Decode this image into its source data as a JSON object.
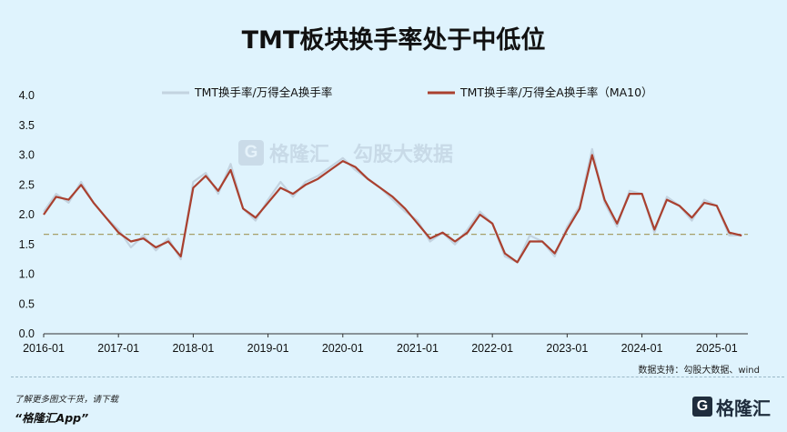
{
  "title": "TMT板块换手率处于中低位",
  "source": "数据支持：勾股大数据、wind",
  "promo_line1": "了解更多图文干货，请下载",
  "promo_line2": "“格隆汇App”",
  "logo_text": "格隆汇",
  "logo_mark": "G",
  "watermark": {
    "mark": "G",
    "brand": "格隆汇",
    "brand2": "勾股大数据"
  },
  "colors": {
    "background": "#dff3fd",
    "raw_series": "#c3d3e0",
    "ma_series": "#a9402f",
    "reference_line": "#a6a06a"
  },
  "chart_data": {
    "type": "line",
    "title": "TMT板块换手率处于中低位",
    "xlabel": "",
    "ylabel": "",
    "ylim": [
      0.0,
      4.0
    ],
    "yticks": [
      "0.0",
      "0.5",
      "1.0",
      "1.5",
      "2.0",
      "2.5",
      "3.0",
      "3.5",
      "4.0"
    ],
    "xticks": [
      "2016-01",
      "2017-01",
      "2018-01",
      "2019-01",
      "2020-01",
      "2021-01",
      "2022-01",
      "2023-01",
      "2024-01",
      "2025-01"
    ],
    "xlim": [
      "2016-01",
      "2025-06"
    ],
    "reference_line": {
      "value": 1.67,
      "style": "dashed"
    },
    "legend_position": "top",
    "grid": false,
    "series": [
      {
        "name": "TMT换手率/万得全A换手率",
        "x": [
          "2016-01",
          "2016-03",
          "2016-05",
          "2016-07",
          "2016-09",
          "2016-11",
          "2017-01",
          "2017-03",
          "2017-05",
          "2017-07",
          "2017-09",
          "2017-11",
          "2018-01",
          "2018-03",
          "2018-05",
          "2018-07",
          "2018-09",
          "2018-11",
          "2019-01",
          "2019-03",
          "2019-05",
          "2019-07",
          "2019-09",
          "2019-11",
          "2020-01",
          "2020-03",
          "2020-05",
          "2020-07",
          "2020-09",
          "2020-11",
          "2021-01",
          "2021-03",
          "2021-05",
          "2021-07",
          "2021-09",
          "2021-11",
          "2022-01",
          "2022-03",
          "2022-05",
          "2022-07",
          "2022-09",
          "2022-11",
          "2023-01",
          "2023-03",
          "2023-05",
          "2023-07",
          "2023-09",
          "2023-11",
          "2024-01",
          "2024-03",
          "2024-05",
          "2024-07",
          "2024-09",
          "2024-11",
          "2025-01",
          "2025-03",
          "2025-05"
        ],
        "values": [
          2.05,
          2.35,
          2.2,
          2.55,
          2.2,
          1.95,
          1.75,
          1.45,
          1.65,
          1.4,
          1.6,
          1.25,
          2.55,
          2.7,
          2.35,
          2.85,
          2.1,
          1.9,
          2.25,
          2.55,
          2.3,
          2.55,
          2.65,
          2.8,
          2.95,
          2.75,
          2.6,
          2.45,
          2.25,
          2.05,
          1.9,
          1.55,
          1.7,
          1.5,
          1.75,
          2.05,
          1.85,
          1.3,
          1.2,
          1.65,
          1.55,
          1.3,
          1.8,
          2.15,
          3.1,
          2.2,
          1.8,
          2.4,
          2.35,
          1.7,
          2.3,
          2.15,
          1.9,
          2.25,
          2.15,
          1.65,
          1.65
        ]
      },
      {
        "name": "TMT换手率/万得全A换手率（MA10）",
        "x": [
          "2016-01",
          "2016-03",
          "2016-05",
          "2016-07",
          "2016-09",
          "2016-11",
          "2017-01",
          "2017-03",
          "2017-05",
          "2017-07",
          "2017-09",
          "2017-11",
          "2018-01",
          "2018-03",
          "2018-05",
          "2018-07",
          "2018-09",
          "2018-11",
          "2019-01",
          "2019-03",
          "2019-05",
          "2019-07",
          "2019-09",
          "2019-11",
          "2020-01",
          "2020-03",
          "2020-05",
          "2020-07",
          "2020-09",
          "2020-11",
          "2021-01",
          "2021-03",
          "2021-05",
          "2021-07",
          "2021-09",
          "2021-11",
          "2022-01",
          "2022-03",
          "2022-05",
          "2022-07",
          "2022-09",
          "2022-11",
          "2023-01",
          "2023-03",
          "2023-05",
          "2023-07",
          "2023-09",
          "2023-11",
          "2024-01",
          "2024-03",
          "2024-05",
          "2024-07",
          "2024-09",
          "2024-11",
          "2025-01",
          "2025-03",
          "2025-05"
        ],
        "values": [
          2.0,
          2.3,
          2.25,
          2.5,
          2.2,
          1.95,
          1.7,
          1.55,
          1.6,
          1.45,
          1.55,
          1.3,
          2.45,
          2.65,
          2.4,
          2.75,
          2.1,
          1.95,
          2.2,
          2.45,
          2.35,
          2.5,
          2.6,
          2.75,
          2.9,
          2.8,
          2.6,
          2.45,
          2.3,
          2.1,
          1.85,
          1.6,
          1.7,
          1.55,
          1.7,
          2.0,
          1.85,
          1.35,
          1.2,
          1.55,
          1.55,
          1.35,
          1.75,
          2.1,
          3.0,
          2.25,
          1.85,
          2.35,
          2.35,
          1.75,
          2.25,
          2.15,
          1.95,
          2.2,
          2.15,
          1.7,
          1.65
        ]
      }
    ]
  }
}
